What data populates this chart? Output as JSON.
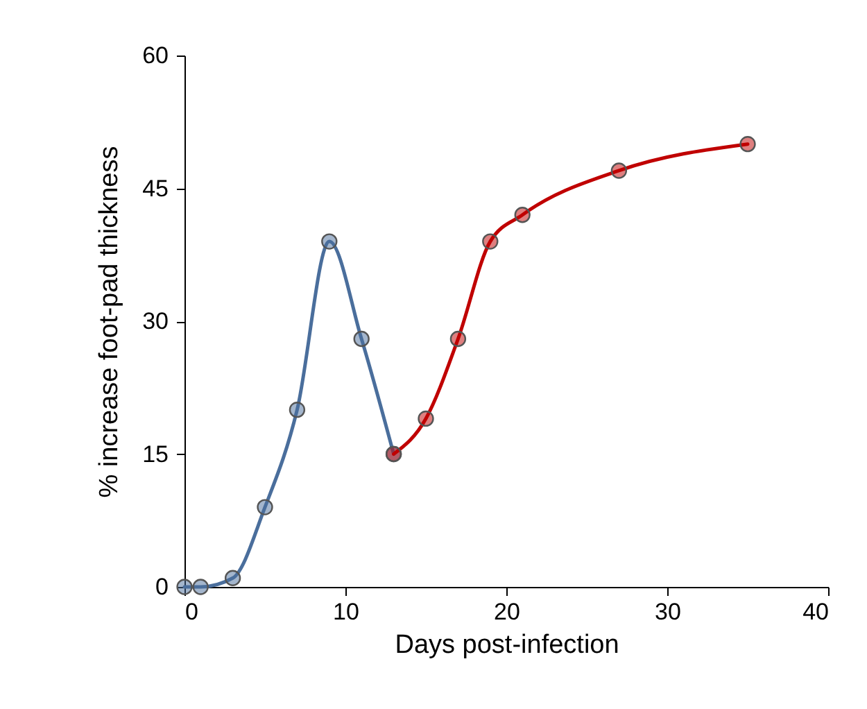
{
  "chart_data": {
    "type": "line",
    "xlabel": "Days post-infection",
    "ylabel": "% increase foot-pad thickness",
    "xlim": [
      0,
      40
    ],
    "xticks": [
      0,
      10,
      20,
      30,
      40
    ],
    "ylim": [
      0,
      60
    ],
    "yticks": [
      0,
      15,
      30,
      45,
      60
    ],
    "marker": "circle",
    "line_style": "solid",
    "series": [
      {
        "color": "#4a6e9c",
        "x": [
          0,
          1,
          3,
          5,
          7,
          9,
          11,
          13
        ],
        "values": [
          0,
          0,
          1,
          9,
          20,
          39,
          28,
          15
        ]
      },
      {
        "color": "#c00000",
        "x": [
          13,
          15,
          17,
          19,
          21,
          27,
          35
        ],
        "values": [
          15,
          19,
          28,
          39,
          42,
          47,
          50
        ]
      }
    ]
  }
}
